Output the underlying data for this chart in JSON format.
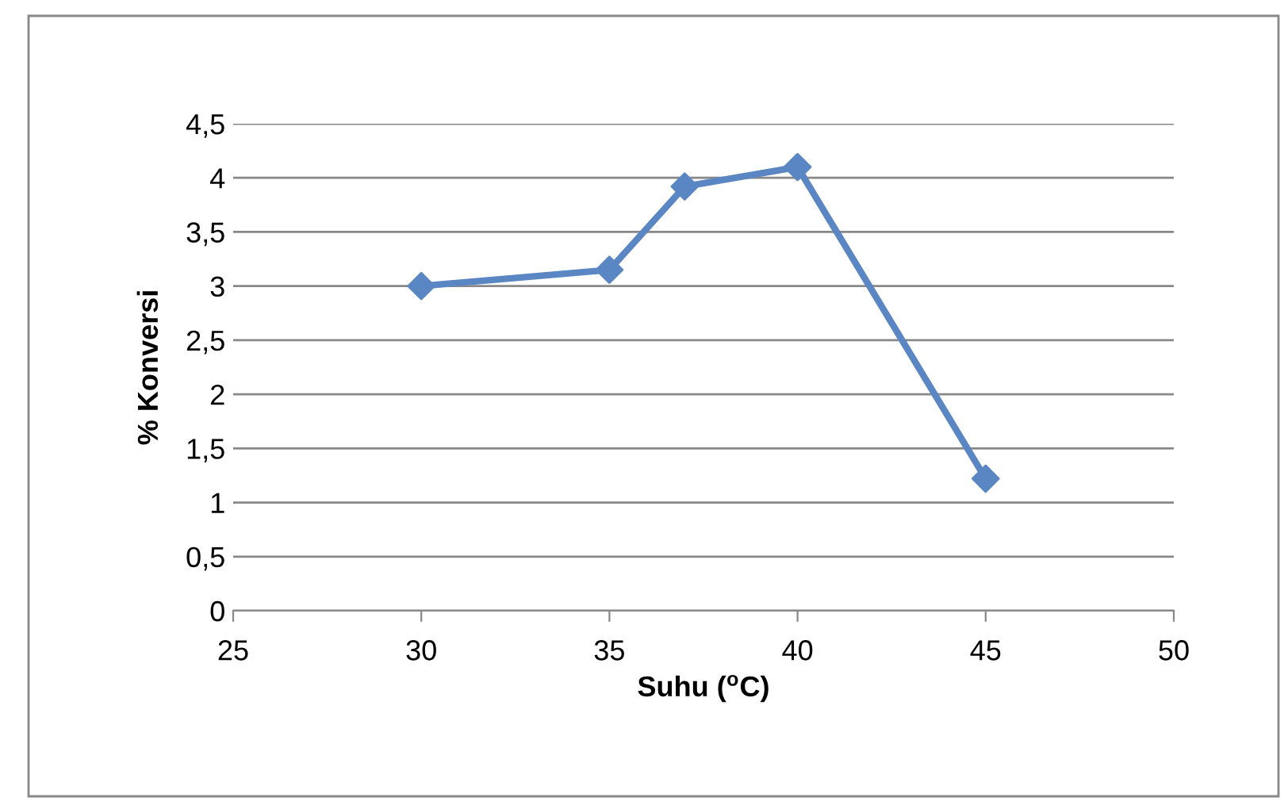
{
  "chart_data": {
    "type": "line",
    "xlabel": "Suhu ($^{o}$C)",
    "ylabel": "% Konversi",
    "x": [
      30,
      35,
      37,
      40,
      45
    ],
    "series": [
      {
        "color": "#5a86c4",
        "values": [
          3.0,
          3.15,
          3.92,
          4.1,
          1.22
        ]
      }
    ],
    "xlim": [
      25,
      50
    ],
    "xticks": [
      25,
      30,
      35,
      40,
      45,
      50
    ],
    "ylim": [
      0,
      4.5
    ],
    "yticks": [
      0,
      {
        "value": 0.5,
        "label": "0,5"
      },
      1,
      {
        "value": 1.5,
        "label": "1,5"
      },
      2,
      {
        "value": 2.5,
        "label": "2,5"
      },
      3,
      {
        "value": 3.5,
        "label": "3,5"
      },
      4,
      {
        "value": 4.5,
        "label": "4,5"
      }
    ],
    "grid": "y",
    "marker": "diamond",
    "line_style": "solid",
    "legend": false
  }
}
